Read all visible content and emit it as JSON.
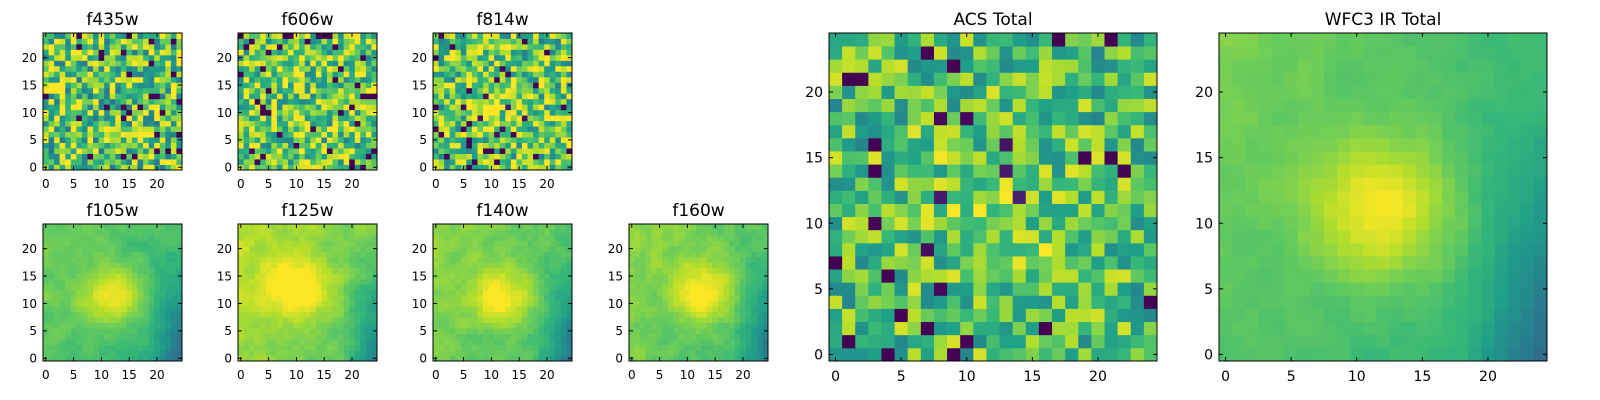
{
  "chart_data": [
    {
      "type": "heatmap",
      "title": "f435w",
      "xticks": [
        0,
        5,
        10,
        15,
        20
      ],
      "yticks": [
        0,
        5,
        10,
        15,
        20
      ],
      "xlim": [
        -0.5,
        24.5
      ],
      "ylim": [
        -0.5,
        24.5
      ],
      "grid_size": 25,
      "colormap": "viridis",
      "pattern": "noise",
      "mean_level": 0.72,
      "variation": 0.22,
      "grid": false
    },
    {
      "type": "heatmap",
      "title": "f606w",
      "xticks": [
        0,
        5,
        10,
        15,
        20
      ],
      "yticks": [
        0,
        5,
        10,
        15,
        20
      ],
      "xlim": [
        -0.5,
        24.5
      ],
      "ylim": [
        -0.5,
        24.5
      ],
      "grid_size": 25,
      "colormap": "viridis",
      "pattern": "noise",
      "mean_level": 0.74,
      "variation": 0.2,
      "grid": false
    },
    {
      "type": "heatmap",
      "title": "f814w",
      "xticks": [
        0,
        5,
        10,
        15,
        20
      ],
      "yticks": [
        0,
        5,
        10,
        15,
        20
      ],
      "xlim": [
        -0.5,
        24.5
      ],
      "ylim": [
        -0.5,
        24.5
      ],
      "grid_size": 25,
      "colormap": "viridis",
      "pattern": "noise_center",
      "mean_level": 0.72,
      "variation": 0.2,
      "grid": false
    },
    {
      "type": "heatmap",
      "title": "f105w",
      "xticks": [
        0,
        5,
        10,
        15,
        20
      ],
      "yticks": [
        0,
        5,
        10,
        15,
        20
      ],
      "xlim": [
        -0.5,
        24.5
      ],
      "ylim": [
        -0.5,
        24.5
      ],
      "grid_size": 25,
      "colormap": "viridis",
      "pattern": "smooth_blob",
      "peak": [
        12,
        11
      ],
      "mean_level": 0.62,
      "variation": 0.1,
      "grid": false
    },
    {
      "type": "heatmap",
      "title": "f125w",
      "xticks": [
        0,
        5,
        10,
        15,
        20
      ],
      "yticks": [
        0,
        5,
        10,
        15,
        20
      ],
      "xlim": [
        -0.5,
        24.5
      ],
      "ylim": [
        -0.5,
        24.5
      ],
      "grid_size": 25,
      "colormap": "viridis",
      "pattern": "smooth_blob",
      "peak": [
        10,
        13
      ],
      "mean_level": 0.72,
      "variation": 0.12,
      "grid": false
    },
    {
      "type": "heatmap",
      "title": "f140w",
      "xticks": [
        0,
        5,
        10,
        15,
        20
      ],
      "yticks": [
        0,
        5,
        10,
        15,
        20
      ],
      "xlim": [
        -0.5,
        24.5
      ],
      "ylim": [
        -0.5,
        24.5
      ],
      "grid_size": 25,
      "colormap": "viridis",
      "pattern": "smooth_blob",
      "peak": [
        12,
        11
      ],
      "mean_level": 0.66,
      "variation": 0.12,
      "grid": false
    },
    {
      "type": "heatmap",
      "title": "f160w",
      "xticks": [
        0,
        5,
        10,
        15,
        20
      ],
      "yticks": [
        0,
        5,
        10,
        15,
        20
      ],
      "xlim": [
        -0.5,
        24.5
      ],
      "ylim": [
        -0.5,
        24.5
      ],
      "grid_size": 25,
      "colormap": "viridis",
      "pattern": "smooth_blob",
      "peak": [
        13,
        12
      ],
      "mean_level": 0.66,
      "variation": 0.12,
      "grid": false
    },
    {
      "type": "heatmap",
      "title": "ACS Total",
      "xticks": [
        0,
        5,
        10,
        15,
        20
      ],
      "yticks": [
        0,
        5,
        10,
        15,
        20
      ],
      "xlim": [
        -0.5,
        24.5
      ],
      "ylim": [
        -0.5,
        24.5
      ],
      "grid_size": 25,
      "colormap": "viridis",
      "pattern": "noise_center",
      "mean_level": 0.68,
      "variation": 0.16,
      "grid": false
    },
    {
      "type": "heatmap",
      "title": "WFC3 IR Total",
      "xticks": [
        0,
        5,
        10,
        15,
        20
      ],
      "yticks": [
        0,
        5,
        10,
        15,
        20
      ],
      "xlim": [
        -0.5,
        24.5
      ],
      "ylim": [
        -0.5,
        24.5
      ],
      "grid_size": 25,
      "colormap": "viridis",
      "pattern": "smooth_blob",
      "peak": [
        12,
        11
      ],
      "mean_level": 0.62,
      "variation": 0.06,
      "grid": false
    }
  ]
}
